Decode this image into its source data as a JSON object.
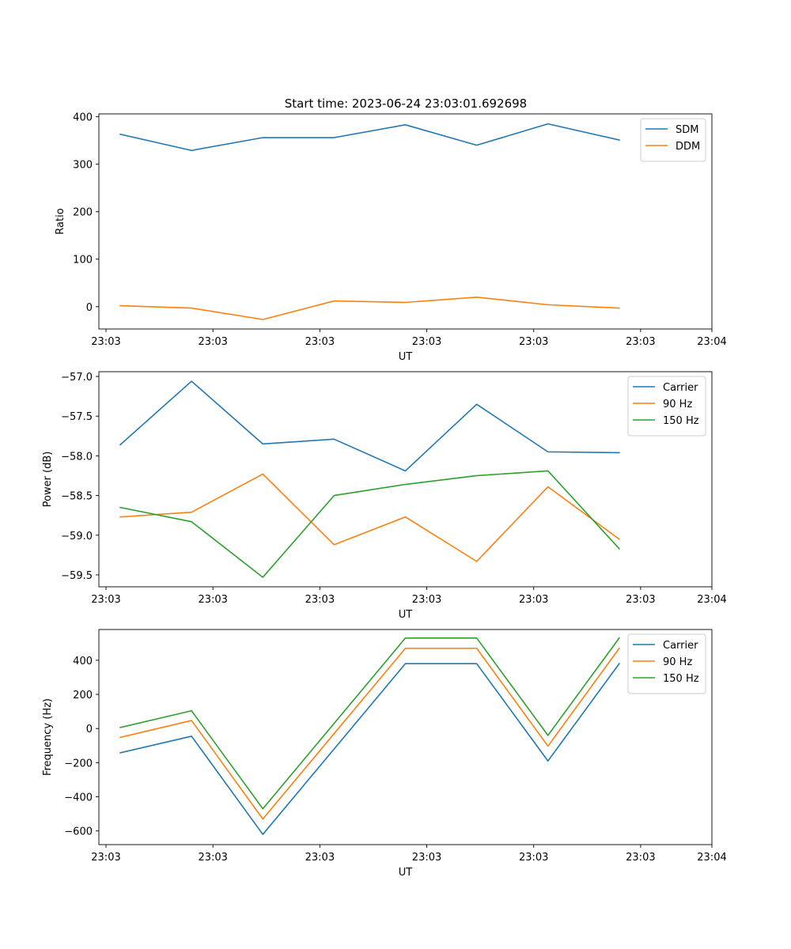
{
  "title": "Start time: 2023-06-24 23:03:01.692698",
  "colors": {
    "blue": "#1f77b4",
    "orange": "#ff7f0e",
    "green": "#2ca02c"
  },
  "chart_data": [
    {
      "type": "line",
      "xlabel": "UT",
      "ylabel": "Ratio",
      "x": [
        1,
        2,
        3,
        4,
        5,
        6,
        7,
        8
      ],
      "xlim": [
        0.7,
        9.3
      ],
      "x_ticks": [
        0.8,
        2.3,
        3.8,
        5.3,
        6.8,
        8.3,
        9.3
      ],
      "x_tick_labels": [
        "23:03",
        "23:03",
        "23:03",
        "23:03",
        "23:03",
        "23:03",
        "23:04"
      ],
      "ylim": [
        -47,
        406
      ],
      "y_ticks": [
        0,
        100,
        200,
        300,
        400
      ],
      "y_tick_labels": [
        "0",
        "100",
        "200",
        "300",
        "400"
      ],
      "grid": false,
      "legend_position": "upper right",
      "series": [
        {
          "name": "SDM",
          "color": "#1f77b4",
          "values": [
            363,
            329,
            356,
            356,
            383,
            340,
            385,
            351
          ]
        },
        {
          "name": "DDM",
          "color": "#ff7f0e",
          "values": [
            2,
            -3,
            -27,
            12,
            9,
            20,
            4,
            -3
          ]
        }
      ]
    },
    {
      "type": "line",
      "xlabel": "UT",
      "ylabel": "Power (dB)",
      "x": [
        1,
        2,
        3,
        4,
        5,
        6,
        7,
        8
      ],
      "xlim": [
        0.7,
        9.3
      ],
      "x_ticks": [
        0.8,
        2.3,
        3.8,
        5.3,
        6.8,
        8.3,
        9.3
      ],
      "x_tick_labels": [
        "23:03",
        "23:03",
        "23:03",
        "23:03",
        "23:03",
        "23:03",
        "23:04"
      ],
      "ylim": [
        -59.65,
        -56.94
      ],
      "y_ticks": [
        -57.0,
        -57.5,
        -58.0,
        -58.5,
        -59.0,
        -59.5
      ],
      "y_tick_labels": [
        "−57.0",
        "−57.5",
        "−58.0",
        "−58.5",
        "−59.0",
        "−59.5"
      ],
      "grid": false,
      "legend_position": "upper right",
      "series": [
        {
          "name": "Carrier",
          "color": "#1f77b4",
          "values": [
            -57.86,
            -57.06,
            -57.85,
            -57.79,
            -58.19,
            -57.35,
            -57.95,
            -57.96
          ]
        },
        {
          "name": "90 Hz",
          "color": "#ff7f0e",
          "values": [
            -58.77,
            -58.71,
            -58.23,
            -59.12,
            -58.77,
            -59.33,
            -58.39,
            -59.05
          ]
        },
        {
          "name": "150 Hz",
          "color": "#2ca02c",
          "values": [
            -58.65,
            -58.83,
            -59.53,
            -58.5,
            -58.36,
            -58.25,
            -58.19,
            -59.17
          ]
        }
      ]
    },
    {
      "type": "line",
      "xlabel": "UT",
      "ylabel": "Frequency (Hz)",
      "x": [
        1,
        2,
        3,
        4,
        5,
        6,
        7,
        8
      ],
      "xlim": [
        0.7,
        9.3
      ],
      "x_ticks": [
        0.8,
        2.3,
        3.8,
        5.3,
        6.8,
        8.3,
        9.3
      ],
      "x_tick_labels": [
        "23:03",
        "23:03",
        "23:03",
        "23:03",
        "23:03",
        "23:03",
        "23:04"
      ],
      "ylim": [
        -680,
        580
      ],
      "y_ticks": [
        400,
        200,
        0,
        -200,
        -400,
        -600
      ],
      "y_tick_labels": [
        "400",
        "200",
        "0",
        "−200",
        "−400",
        "−600"
      ],
      "grid": false,
      "legend_position": "upper right",
      "series": [
        {
          "name": "Carrier",
          "color": "#1f77b4",
          "values": [
            -142,
            -45,
            -620,
            -120,
            380,
            380,
            -190,
            380
          ]
        },
        {
          "name": "90 Hz",
          "color": "#ff7f0e",
          "values": [
            -52,
            47,
            -530,
            -30,
            470,
            470,
            -103,
            470
          ]
        },
        {
          "name": "150 Hz",
          "color": "#2ca02c",
          "values": [
            6,
            104,
            -470,
            30,
            530,
            530,
            -40,
            530
          ]
        }
      ]
    }
  ]
}
